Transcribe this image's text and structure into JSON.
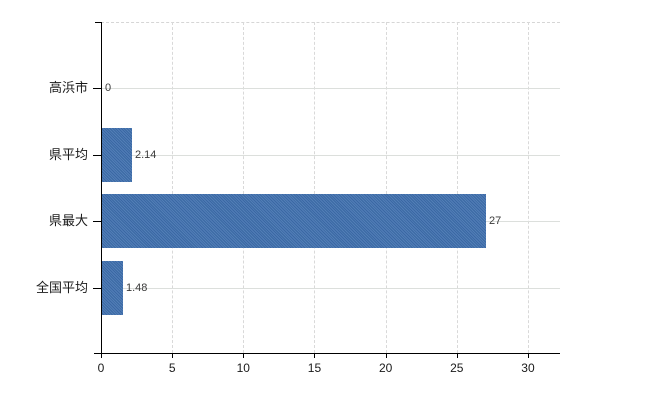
{
  "chart_data": {
    "type": "bar",
    "orientation": "horizontal",
    "title": "",
    "xlabel": "",
    "ylabel": "",
    "categories": [
      "高浜市",
      "県平均",
      "県最大",
      "全国平均"
    ],
    "values": [
      0,
      2.14,
      27,
      1.48
    ],
    "value_labels": [
      "0",
      "2.14",
      "27",
      "1.48"
    ],
    "x_ticks": [
      0,
      5,
      10,
      15,
      20,
      25,
      30
    ],
    "x_tick_labels": [
      "0",
      "5",
      "10",
      "15",
      "20",
      "25",
      "30"
    ],
    "xlim": [
      0,
      32.25
    ],
    "grid": true,
    "legend": false,
    "bar_color": "#3e6fae",
    "axis_color": "#000000",
    "gridline_color": "#d9d9d9",
    "value_label_color": "#3a3a3a",
    "category_label_color": "#1a1a1a"
  }
}
